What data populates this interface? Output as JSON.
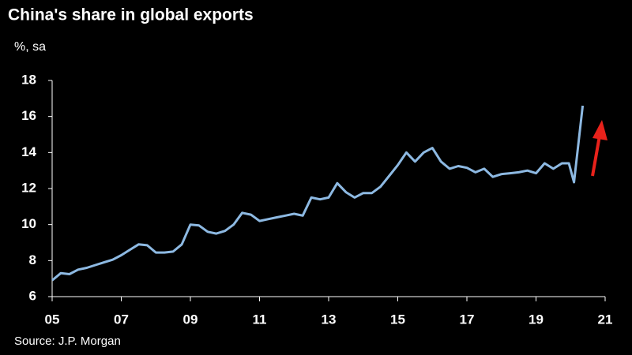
{
  "chart_data": {
    "type": "line",
    "title": "China's share in global exports",
    "subtitle": "%, sa",
    "source": "Source: J.P. Morgan",
    "color": "#8db9e2",
    "x": [
      2005.0,
      2005.25,
      2005.5,
      2005.75,
      2006.0,
      2006.25,
      2006.5,
      2006.75,
      2007.0,
      2007.25,
      2007.5,
      2007.75,
      2008.0,
      2008.25,
      2008.5,
      2008.75,
      2009.0,
      2009.25,
      2009.5,
      2009.75,
      2010.0,
      2010.25,
      2010.5,
      2010.75,
      2011.0,
      2011.25,
      2011.5,
      2011.75,
      2012.0,
      2012.25,
      2012.5,
      2012.75,
      2013.0,
      2013.25,
      2013.5,
      2013.75,
      2014.0,
      2014.25,
      2014.5,
      2014.75,
      2015.0,
      2015.25,
      2015.5,
      2015.75,
      2016.0,
      2016.25,
      2016.5,
      2016.75,
      2017.0,
      2017.25,
      2017.5,
      2017.75,
      2018.0,
      2018.25,
      2018.5,
      2018.75,
      2019.0,
      2019.25,
      2019.5,
      2019.75,
      2019.95,
      2020.1,
      2020.35
    ],
    "values": [
      6.9,
      7.3,
      7.25,
      7.5,
      7.6,
      7.75,
      7.9,
      8.05,
      8.3,
      8.6,
      8.9,
      8.85,
      8.45,
      8.45,
      8.5,
      8.9,
      10.0,
      9.95,
      9.6,
      9.5,
      9.65,
      10.0,
      10.65,
      10.55,
      10.2,
      10.3,
      10.4,
      10.5,
      10.6,
      10.5,
      11.5,
      11.4,
      11.5,
      12.3,
      11.8,
      11.5,
      11.75,
      11.75,
      12.1,
      12.7,
      13.3,
      14.0,
      13.5,
      14.0,
      14.25,
      13.5,
      13.1,
      13.25,
      13.15,
      12.9,
      13.1,
      12.65,
      12.8,
      12.85,
      12.9,
      13.0,
      12.85,
      13.4,
      13.1,
      13.4,
      13.4,
      12.35,
      16.6
    ],
    "xlim": [
      2005,
      2021
    ],
    "xticks": [
      {
        "value": 2005,
        "label": "05"
      },
      {
        "value": 2007,
        "label": "07"
      },
      {
        "value": 2009,
        "label": "09"
      },
      {
        "value": 2011,
        "label": "11"
      },
      {
        "value": 2013,
        "label": "13"
      },
      {
        "value": 2015,
        "label": "15"
      },
      {
        "value": 2017,
        "label": "17"
      },
      {
        "value": 2019,
        "label": "19"
      },
      {
        "value": 2021,
        "label": "21"
      }
    ],
    "ylim": [
      6,
      18
    ],
    "yticks": [
      6,
      8,
      10,
      12,
      14,
      16,
      18
    ]
  }
}
